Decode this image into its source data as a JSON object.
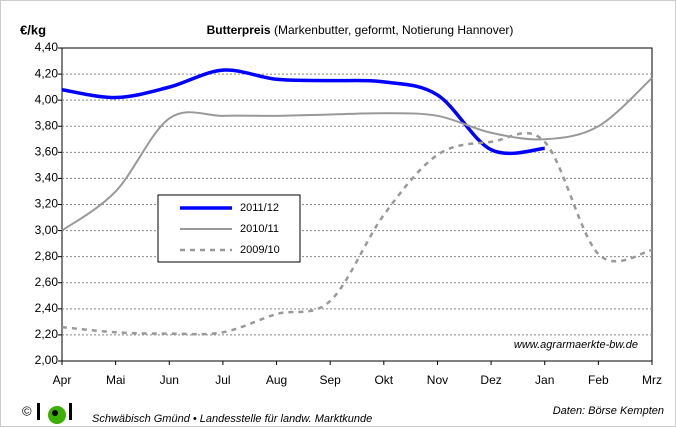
{
  "chart_data": {
    "type": "line",
    "title": "Butterpreis",
    "subtitle": "(Markenbutter, geformt, Notierung Hannover)",
    "y_label": "€/kg",
    "annotation": "www.agrarmaerkte-bw.de",
    "footer_left": "Schwäbisch Gmünd • Landesstelle für landw. Marktkunde",
    "footer_right": "Daten: Börse Kempten",
    "copyright": "©",
    "categories": [
      "Apr",
      "Mai",
      "Jun",
      "Jul",
      "Aug",
      "Sep",
      "Okt",
      "Nov",
      "Dez",
      "Jan",
      "Feb",
      "Mrz"
    ],
    "series": [
      {
        "name": "2011/12",
        "color": "#0000ff",
        "width": 3.5,
        "dash": false,
        "values": [
          4.08,
          4.02,
          4.1,
          4.23,
          4.16,
          4.15,
          4.14,
          4.04,
          3.62,
          3.63,
          null,
          null
        ]
      },
      {
        "name": "2010/11",
        "color": "#999999",
        "width": 2,
        "dash": false,
        "values": [
          3.0,
          3.3,
          3.86,
          3.88,
          3.88,
          3.89,
          3.9,
          3.88,
          3.75,
          3.7,
          3.8,
          4.17
        ]
      },
      {
        "name": "2009/10",
        "color": "#999999",
        "width": 2.5,
        "dash": true,
        "values": [
          2.26,
          2.22,
          2.21,
          2.22,
          2.36,
          2.46,
          3.12,
          3.58,
          3.68,
          3.68,
          2.82,
          2.85
        ]
      }
    ],
    "ylim": [
      2.0,
      4.4
    ],
    "yticks": [
      {
        "value": 2.0,
        "label": "2,00"
      },
      {
        "value": 2.2,
        "label": "2,20"
      },
      {
        "value": 2.4,
        "label": "2,40"
      },
      {
        "value": 2.6,
        "label": "2,60"
      },
      {
        "value": 2.8,
        "label": "2,80"
      },
      {
        "value": 3.0,
        "label": "3,00"
      },
      {
        "value": 3.2,
        "label": "3,20"
      },
      {
        "value": 3.4,
        "label": "3,40"
      },
      {
        "value": 3.6,
        "label": "3,60"
      },
      {
        "value": 3.8,
        "label": "3,80"
      },
      {
        "value": 4.0,
        "label": "4,00"
      },
      {
        "value": 4.2,
        "label": "4,20"
      },
      {
        "value": 4.4,
        "label": "4,40"
      }
    ],
    "grid": true,
    "legend": "left"
  }
}
